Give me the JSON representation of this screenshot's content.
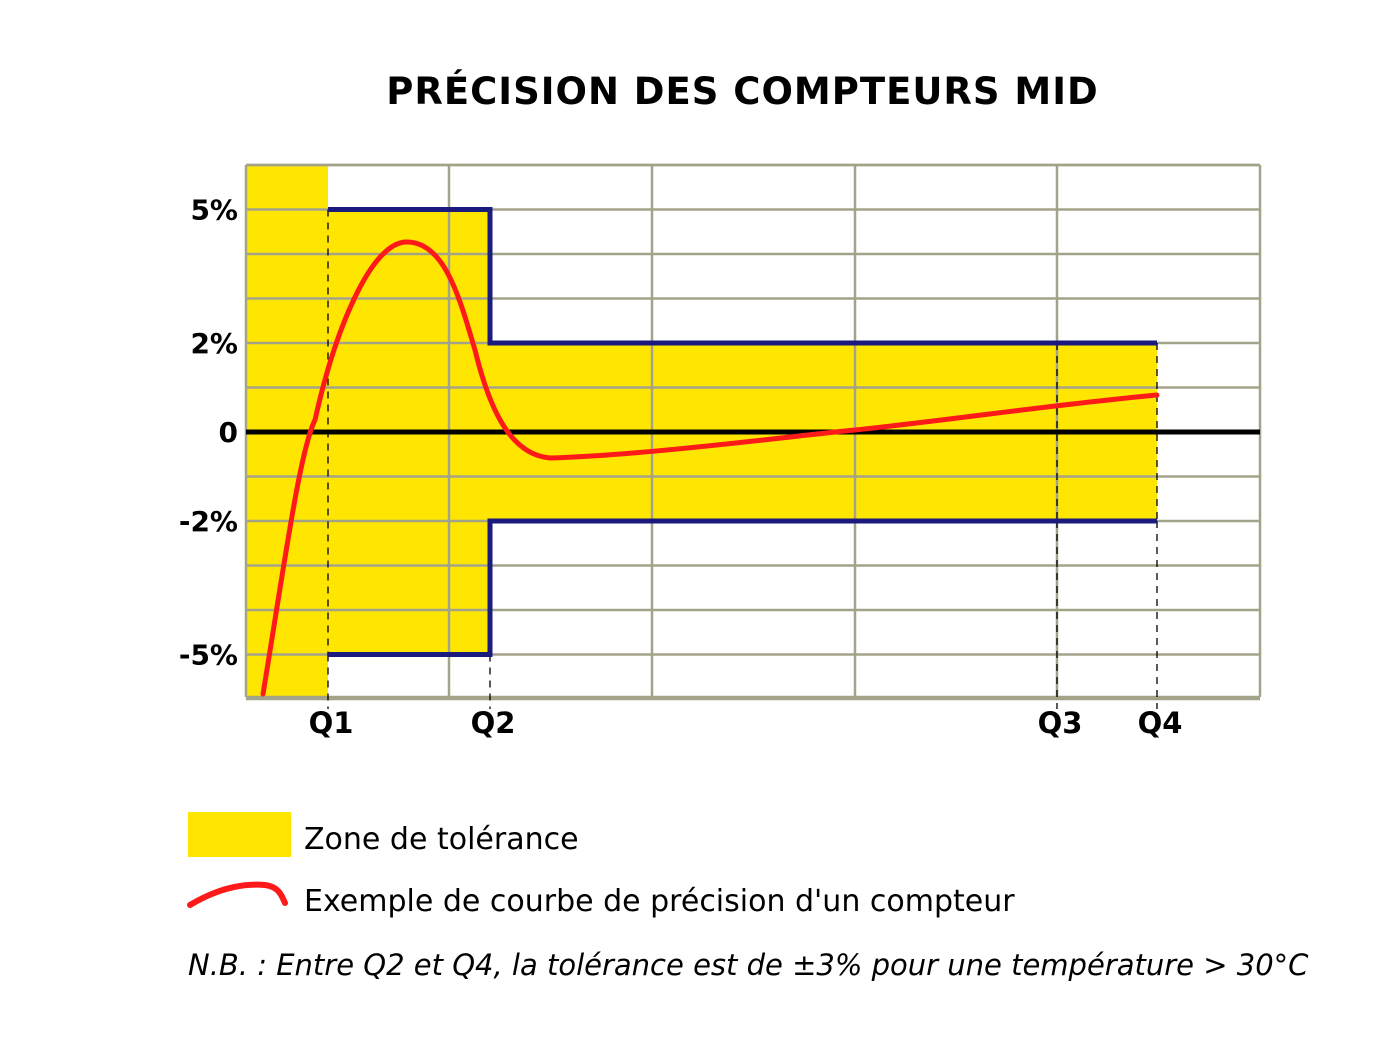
{
  "chart_data": {
    "type": "line",
    "title": "PRÉCISION DES COMPTEURS MID",
    "xlabel": "",
    "ylabel": "",
    "x_ticks": [
      "Q1",
      "Q2",
      "Q3",
      "Q4"
    ],
    "y_ticks": [
      {
        "label": "5%",
        "value": 5
      },
      {
        "label": "2%",
        "value": 2
      },
      {
        "label": "0",
        "value": 0
      },
      {
        "label": "-2%",
        "value": -2
      },
      {
        "label": "-5%",
        "value": -5
      }
    ],
    "ylim": [
      -6,
      6
    ],
    "grid": true,
    "legend": "bottom",
    "tolerance_zone": {
      "label": "Zone de tolérance",
      "segments": [
        {
          "from": "Q1",
          "to": "Q2",
          "lower": -5,
          "upper": 5
        },
        {
          "from": "Q2",
          "to": "Q4",
          "lower": -2,
          "upper": 2
        }
      ]
    },
    "series": [
      {
        "name": "Exemple de courbe de précision d'un compteur",
        "points": [
          {
            "x": "Q1",
            "y": 1.5
          },
          {
            "x": "Q1-Q2 peak",
            "y": 4.3
          },
          {
            "x": "Q2",
            "y": 0.8
          },
          {
            "x": "after Q2 min",
            "y": -0.6
          },
          {
            "x": "Q3",
            "y": 0.5
          },
          {
            "x": "Q4",
            "y": 0.85
          }
        ]
      }
    ]
  },
  "legend": {
    "zone_label": "Zone de tolérance",
    "curve_label": "Exemple de courbe de précision d'un compteur"
  },
  "note": "N.B. : Entre Q2 et Q4, la tolérance est de ±3% pour une température > 30°C",
  "colors": {
    "zone": "#ffe600",
    "curve": "#ff1a1a",
    "bounds": "#1b1b7e",
    "grid": "#a3a38a",
    "zero_line": "#000000"
  }
}
